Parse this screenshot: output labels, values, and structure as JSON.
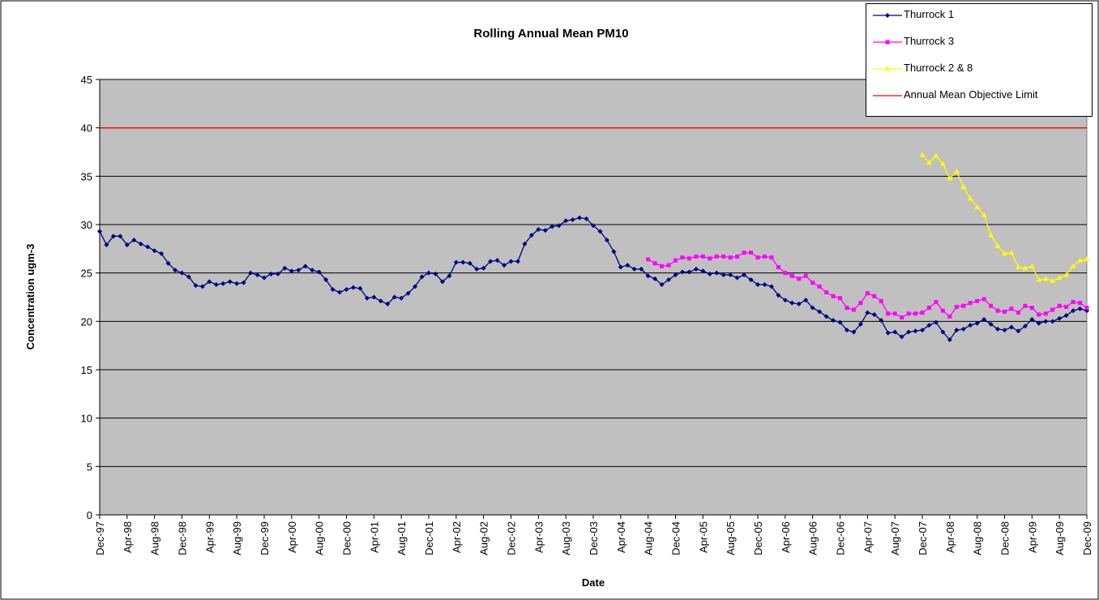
{
  "chart_data": {
    "type": "line",
    "title": "Rolling Annual Mean PM10",
    "x_label": "Date",
    "y_label": "Concentration ugm-3",
    "categories": [
      "Dec-97",
      null,
      null,
      null,
      "Apr-98",
      null,
      null,
      null,
      "Aug-98",
      null,
      null,
      null,
      "Dec-98",
      null,
      null,
      null,
      "Apr-99",
      null,
      null,
      null,
      "Aug-99",
      null,
      null,
      null,
      "Dec-99",
      null,
      null,
      null,
      "Apr-00",
      null,
      null,
      null,
      "Aug-00",
      null,
      null,
      null,
      "Dec-00",
      null,
      null,
      null,
      "Apr-01",
      null,
      null,
      null,
      "Aug-01",
      null,
      null,
      null,
      "Dec-01",
      null,
      null,
      null,
      "Apr-02",
      null,
      null,
      null,
      "Aug-02",
      null,
      null,
      null,
      "Dec-02",
      null,
      null,
      null,
      "Apr-03",
      null,
      null,
      null,
      "Aug-03",
      null,
      null,
      null,
      "Dec-03",
      null,
      null,
      null,
      "Apr-04",
      null,
      null,
      null,
      "Aug-04",
      null,
      null,
      null,
      "Dec-04",
      null,
      null,
      null,
      "Apr-05",
      null,
      null,
      null,
      "Aug-05",
      null,
      null,
      null,
      "Dec-05",
      null,
      null,
      null,
      "Apr-06",
      null,
      null,
      null,
      "Aug-06",
      null,
      null,
      null,
      "Dec-06",
      null,
      null,
      null,
      "Apr-07",
      null,
      null,
      null,
      "Aug-07",
      null,
      null,
      null,
      "Dec-07",
      null,
      null,
      null,
      "Apr-08",
      null,
      null,
      null,
      "Aug-08",
      null,
      null,
      null,
      "Dec-08",
      null,
      null,
      null,
      "Apr-09",
      null,
      null,
      null,
      "Aug-09",
      null,
      null,
      null,
      "Dec-09"
    ],
    "series": [
      {
        "name": "Thurrock 1",
        "color": "#000080",
        "marker": "diamond",
        "values": [
          29.3,
          27.9,
          28.8,
          28.8,
          27.9,
          28.4,
          28.0,
          27.7,
          27.3,
          27.0,
          26.0,
          25.3,
          25.0,
          24.6,
          23.7,
          23.6,
          24.1,
          23.8,
          23.9,
          24.1,
          23.9,
          24.0,
          25.0,
          24.8,
          24.5,
          24.9,
          24.9,
          25.5,
          25.2,
          25.3,
          25.7,
          25.3,
          25.1,
          24.3,
          23.3,
          23.0,
          23.3,
          23.5,
          23.4,
          22.4,
          22.5,
          22.1,
          21.8,
          22.5,
          22.4,
          22.9,
          23.6,
          24.6,
          25.0,
          24.9,
          24.1,
          24.7,
          26.1,
          26.1,
          26.0,
          25.4,
          25.5,
          26.2,
          26.3,
          25.8,
          26.2,
          26.2,
          28.0,
          28.9,
          29.5,
          29.4,
          29.8,
          29.9,
          30.4,
          30.5,
          30.7,
          30.6,
          29.9,
          29.3,
          28.4,
          27.2,
          25.6,
          25.8,
          25.4,
          25.4,
          24.7,
          24.4,
          23.8,
          24.3,
          24.8,
          25.1,
          25.1,
          25.4,
          25.2,
          24.9,
          25.0,
          24.8,
          24.8,
          24.5,
          24.8,
          24.3,
          23.8,
          23.8,
          23.6,
          22.7,
          22.2,
          21.9,
          21.8,
          22.2,
          21.4,
          21.0,
          20.5,
          20.1,
          19.9,
          19.1,
          18.9,
          19.7,
          20.9,
          20.7,
          20.1,
          18.8,
          18.9,
          18.4,
          18.9,
          19.0,
          19.1,
          19.6,
          19.9,
          18.9,
          18.1,
          19.1,
          19.2,
          19.6,
          19.8,
          20.2,
          19.7,
          19.2,
          19.1,
          19.4,
          19.0,
          19.5,
          20.2,
          19.8,
          20.0,
          20.0,
          20.3,
          20.6,
          21.1,
          21.3,
          21.1
        ]
      },
      {
        "name": "Thurrock 3",
        "color": "#ff00ff",
        "marker": "square",
        "values": [
          null,
          null,
          null,
          null,
          null,
          null,
          null,
          null,
          null,
          null,
          null,
          null,
          null,
          null,
          null,
          null,
          null,
          null,
          null,
          null,
          null,
          null,
          null,
          null,
          null,
          null,
          null,
          null,
          null,
          null,
          null,
          null,
          null,
          null,
          null,
          null,
          null,
          null,
          null,
          null,
          null,
          null,
          null,
          null,
          null,
          null,
          null,
          null,
          null,
          null,
          null,
          null,
          null,
          null,
          null,
          null,
          null,
          null,
          null,
          null,
          null,
          null,
          null,
          null,
          null,
          null,
          null,
          null,
          null,
          null,
          null,
          null,
          null,
          null,
          null,
          null,
          null,
          null,
          null,
          null,
          26.4,
          26.0,
          25.7,
          25.8,
          26.3,
          26.6,
          26.5,
          26.7,
          26.7,
          26.5,
          26.7,
          26.7,
          26.6,
          26.7,
          27.1,
          27.1,
          26.6,
          26.7,
          26.6,
          25.6,
          25.0,
          24.7,
          24.4,
          24.7,
          24.0,
          23.6,
          23.0,
          22.6,
          22.4,
          21.4,
          21.2,
          21.9,
          22.9,
          22.6,
          22.1,
          20.8,
          20.8,
          20.4,
          20.8,
          20.8,
          20.9,
          21.4,
          22.0,
          21.1,
          20.5,
          21.5,
          21.6,
          21.9,
          22.1,
          22.3,
          21.6,
          21.1,
          21.0,
          21.3,
          20.9,
          21.6,
          21.4,
          20.7,
          20.8,
          21.2,
          21.6,
          21.5,
          22.0,
          21.9,
          21.4
        ]
      },
      {
        "name": "Thurrock 2 & 8",
        "color": "#ffff00",
        "marker": "triangle",
        "values": [
          null,
          null,
          null,
          null,
          null,
          null,
          null,
          null,
          null,
          null,
          null,
          null,
          null,
          null,
          null,
          null,
          null,
          null,
          null,
          null,
          null,
          null,
          null,
          null,
          null,
          null,
          null,
          null,
          null,
          null,
          null,
          null,
          null,
          null,
          null,
          null,
          null,
          null,
          null,
          null,
          null,
          null,
          null,
          null,
          null,
          null,
          null,
          null,
          null,
          null,
          null,
          null,
          null,
          null,
          null,
          null,
          null,
          null,
          null,
          null,
          null,
          null,
          null,
          null,
          null,
          null,
          null,
          null,
          null,
          null,
          null,
          null,
          null,
          null,
          null,
          null,
          null,
          null,
          null,
          null,
          null,
          null,
          null,
          null,
          null,
          null,
          null,
          null,
          null,
          null,
          null,
          null,
          null,
          null,
          null,
          null,
          null,
          null,
          null,
          null,
          null,
          null,
          null,
          null,
          null,
          null,
          null,
          null,
          null,
          null,
          null,
          null,
          null,
          null,
          null,
          null,
          null,
          null,
          null,
          null,
          37.2,
          36.4,
          37.1,
          36.3,
          34.8,
          35.5,
          33.9,
          32.7,
          31.8,
          31.0,
          28.9,
          27.8,
          27.0,
          27.1,
          25.6,
          25.5,
          25.7,
          24.3,
          24.4,
          24.2,
          24.5,
          24.8,
          25.7,
          26.3,
          26.4
        ]
      },
      {
        "name": "Annual Mean Objective Limit",
        "color": "#ff0000",
        "marker": "none",
        "values": [
          40,
          40,
          40,
          40,
          40,
          40,
          40,
          40,
          40,
          40,
          40,
          40,
          40,
          40,
          40,
          40,
          40,
          40,
          40,
          40,
          40,
          40,
          40,
          40,
          40,
          40,
          40,
          40,
          40,
          40,
          40,
          40,
          40,
          40,
          40,
          40,
          40,
          40,
          40,
          40,
          40,
          40,
          40,
          40,
          40,
          40,
          40,
          40,
          40,
          40,
          40,
          40,
          40,
          40,
          40,
          40,
          40,
          40,
          40,
          40,
          40,
          40,
          40,
          40,
          40,
          40,
          40,
          40,
          40,
          40,
          40,
          40,
          40,
          40,
          40,
          40,
          40,
          40,
          40,
          40,
          40,
          40,
          40,
          40,
          40,
          40,
          40,
          40,
          40,
          40,
          40,
          40,
          40,
          40,
          40,
          40,
          40,
          40,
          40,
          40,
          40,
          40,
          40,
          40,
          40,
          40,
          40,
          40,
          40,
          40,
          40,
          40,
          40,
          40,
          40,
          40,
          40,
          40,
          40,
          40,
          40,
          40,
          40,
          40,
          40,
          40,
          40,
          40,
          40,
          40,
          40,
          40,
          40,
          40,
          40,
          40,
          40,
          40,
          40,
          40,
          40,
          40,
          40,
          40,
          40
        ]
      }
    ],
    "ylim": [
      0,
      45
    ],
    "yticks": [
      0,
      5,
      10,
      15,
      20,
      25,
      30,
      35,
      40,
      45
    ],
    "grid": true,
    "legend": "top-right"
  }
}
